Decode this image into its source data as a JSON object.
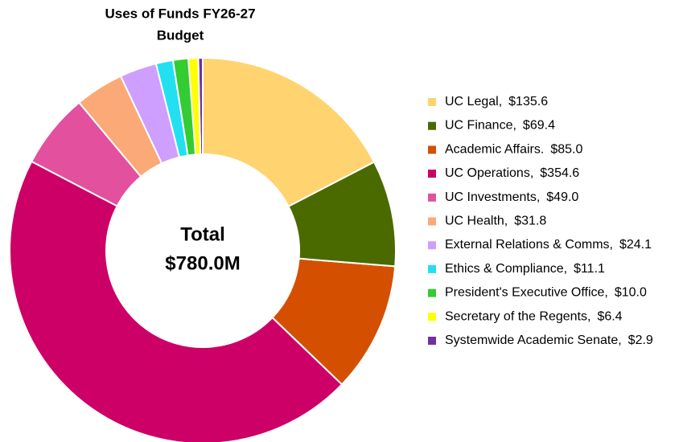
{
  "chart_data": {
    "type": "donut",
    "title": [
      "Uses of Funds FY26-27",
      "Budget"
    ],
    "center_text": [
      "Total",
      "$780.0M"
    ],
    "categories": [
      "UC Legal,",
      "UC Finance,",
      "Academic Affairs.",
      "UC Operations,",
      "UC Investments,",
      "UC Health,",
      "External Relations & Comms,",
      "Ethics & Compliance,",
      "President's Executive Office,",
      "Secretary of the Regents,",
      "Systemwide Academic Senate,"
    ],
    "values": [
      135.6,
      69.4,
      85.0,
      354.6,
      49.0,
      31.8,
      24.1,
      11.1,
      10.0,
      6.4,
      2.9
    ],
    "value_labels": [
      "$135.6",
      "$69.4",
      "$85.0",
      "$354.6",
      "$49.0",
      "$31.8",
      "$24.1",
      "$11.1",
      "$10.0",
      "$6.4",
      "$2.9"
    ],
    "colors": [
      "#FFD370",
      "#4A6A00",
      "#D45000",
      "#CC0066",
      "#E3509D",
      "#FAA977",
      "#CF9FFF",
      "#22E0F0",
      "#33CC33",
      "#FFFF00",
      "#7030A0"
    ],
    "legend": "right"
  }
}
